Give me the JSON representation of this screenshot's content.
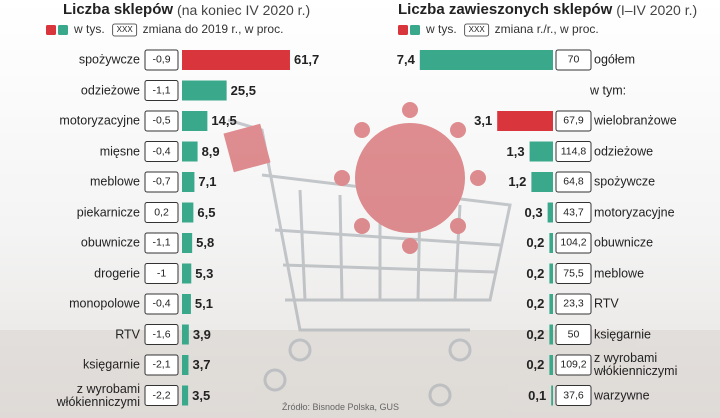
{
  "chart_data": [
    {
      "type": "bar",
      "title": "Liczba sklepów",
      "subtitle": "(na koniec IV 2020 r.)",
      "legend_colors": [
        "#d8353c",
        "#3aa88a"
      ],
      "legend_sample": "XXX",
      "categories": [
        "spożywcze",
        "odzieżowe",
        "motoryzacyjne",
        "mięsne",
        "meblowe",
        "piekarnicze",
        "obuwnicze",
        "drogerie",
        "monopolowe",
        "RTV",
        "księgarnie",
        "z wyrobami\nwłókienniczymi"
      ],
      "series": [
        {
          "name": "w tys.",
          "colors": [
            "#d8353c",
            "#3aa88a",
            "#3aa88a",
            "#3aa88a",
            "#3aa88a",
            "#3aa88a",
            "#3aa88a",
            "#3aa88a",
            "#3aa88a",
            "#3aa88a",
            "#3aa88a",
            "#3aa88a"
          ],
          "values": [
            61.7,
            25.5,
            14.5,
            8.9,
            7.1,
            6.5,
            5.8,
            5.3,
            5.1,
            3.9,
            3.7,
            3.5
          ],
          "value_labels": [
            "61,7",
            "25,5",
            "14,5",
            "8,9",
            "7,1",
            "6,5",
            "5,8",
            "5,3",
            "5,1",
            "3,9",
            "3,7",
            "3,5"
          ]
        },
        {
          "name": "zmiana do 2019 r., w proc.",
          "values": [
            -0.9,
            -1.1,
            -0.5,
            -0.4,
            -0.7,
            0.2,
            -1.1,
            -1,
            -0.4,
            -1.6,
            -2.1,
            -2.2
          ],
          "value_labels": [
            "-0,9",
            "-1,1",
            "-0,5",
            "-0,4",
            "-0,7",
            "0,2",
            "-1,1",
            "-1",
            "-0,4",
            "-1,6",
            "-2,1",
            "-2,2"
          ]
        }
      ]
    },
    {
      "type": "bar",
      "title": "Liczba zawieszonych sklepów",
      "subtitle": "(I–IV 2020 r.)",
      "legend_colors": [
        "#d8353c",
        "#3aa88a"
      ],
      "legend_sample": "XXX",
      "subheader": "w tym:",
      "categories": [
        "ogółem",
        "wielobranżowe",
        "odzieżowe",
        "spożywcze",
        "motoryzacyjne",
        "obuwnicze",
        "meblowe",
        "RTV",
        "księgarnie",
        "z wyrobami\nwłókienniczymi",
        "warzywne"
      ],
      "series": [
        {
          "name": "w tys.",
          "colors": [
            "#3aa88a",
            "#d8353c",
            "#3aa88a",
            "#3aa88a",
            "#3aa88a",
            "#3aa88a",
            "#3aa88a",
            "#3aa88a",
            "#3aa88a",
            "#3aa88a",
            "#3aa88a"
          ],
          "values": [
            7.4,
            3.1,
            1.3,
            1.2,
            0.3,
            0.2,
            0.2,
            0.2,
            0.2,
            0.2,
            0.1
          ],
          "value_labels": [
            "7,4",
            "3,1",
            "1,3",
            "1,2",
            "0,3",
            "0,2",
            "0,2",
            "0,2",
            "0,2",
            "0,2",
            "0,1"
          ]
        },
        {
          "name": "zmiana r./r., w proc.",
          "values": [
            70,
            67.9,
            114.8,
            64.8,
            43.7,
            104.2,
            75.5,
            23.3,
            50,
            109.2,
            37.6
          ],
          "value_labels": [
            "70",
            "67,9",
            "114,8",
            "64,8",
            "43,7",
            "104,2",
            "75,5",
            "23,3",
            "50",
            "109,2",
            "37,6"
          ]
        }
      ]
    }
  ],
  "source": "Źródło: Bisnode Polska, GUS"
}
